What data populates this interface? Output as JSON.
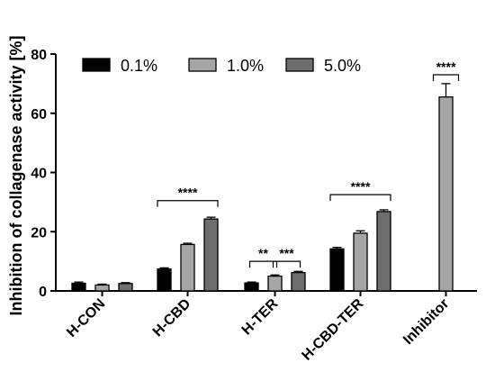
{
  "chart_data": {
    "type": "bar",
    "ylabel": "Inhibition of collagenase activity [%]",
    "ylim": [
      0,
      80
    ],
    "yticks": [
      0,
      20,
      40,
      60,
      80
    ],
    "categories": [
      "H-CON",
      "H-CBD",
      "H-TER",
      "H-CBD-TER",
      "Inhibitor"
    ],
    "series": [
      {
        "name": "0.1%",
        "color": "#000000",
        "values": [
          2.6,
          7.4,
          2.7,
          14.2,
          null
        ],
        "errors": [
          0.4,
          0.4,
          0.3,
          0.5,
          null
        ]
      },
      {
        "name": "1.0%",
        "color": "#a6a6a6",
        "values": [
          2.0,
          15.7,
          5.0,
          19.5,
          65.5
        ],
        "errors": [
          0.3,
          0.4,
          0.4,
          0.8,
          4.5
        ]
      },
      {
        "name": "5.0%",
        "color": "#6e6e6e",
        "values": [
          2.5,
          24.3,
          6.2,
          26.8,
          null
        ],
        "errors": [
          0.3,
          0.6,
          0.4,
          0.6,
          null
        ]
      }
    ],
    "legend_position": "top-left",
    "significance": [
      {
        "label": "****",
        "group": "H-CBD",
        "from_series": 0,
        "to_series": 2,
        "level": 30.5
      },
      {
        "label": "**",
        "group": "H-TER",
        "from_series": 0,
        "to_series": 1,
        "level": 10.0
      },
      {
        "label": "***",
        "group": "H-TER",
        "from_series": 1,
        "to_series": 2,
        "level": 10.0
      },
      {
        "label": "****",
        "group": "H-CBD-TER",
        "from_series": 0,
        "to_series": 2,
        "level": 32.5
      },
      {
        "label": "****",
        "group": "Inhibitor",
        "from_series": 1,
        "to_series": 1,
        "level": 73.0
      }
    ]
  }
}
